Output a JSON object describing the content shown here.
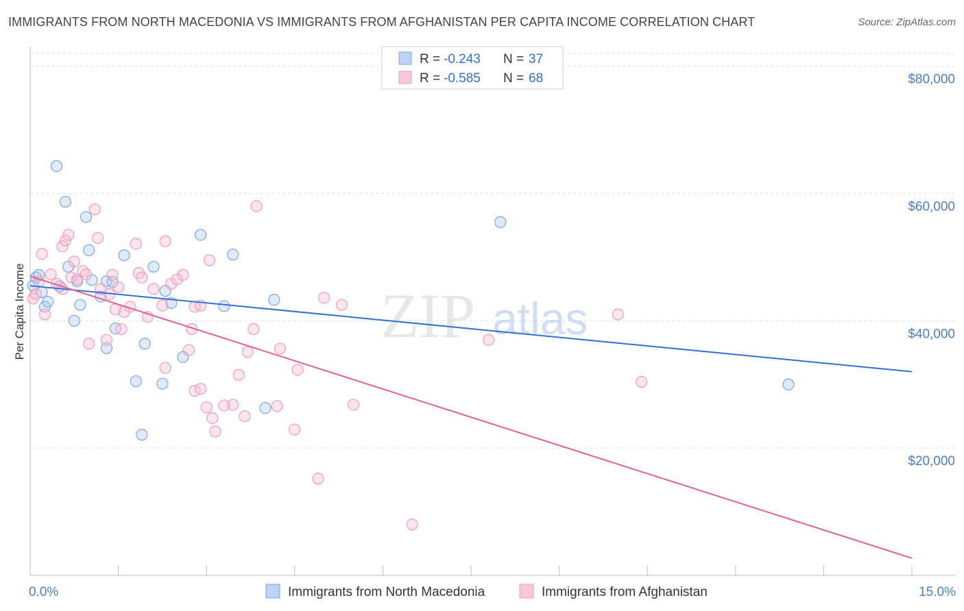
{
  "title": "IMMIGRANTS FROM NORTH MACEDONIA VS IMMIGRANTS FROM AFGHANISTAN PER CAPITA INCOME CORRELATION CHART",
  "source": "Source: ZipAtlas.com",
  "watermark": {
    "zip": "ZIP",
    "atlas": "atlas"
  },
  "colors": {
    "blue": "#7aa6e8",
    "blue_line": "#2f6fd6",
    "pink": "#f19bb6",
    "pink_line": "#e0608f",
    "axis_text": "#4a7cc9"
  },
  "chart_data": {
    "type": "scatter",
    "xlabel": "",
    "ylabel": "Per Capita Income",
    "xlim": [
      0,
      15
    ],
    "ylim": [
      0,
      82000
    ],
    "x_tick_labels": {
      "min": "0.0%",
      "max": "15.0%"
    },
    "y_ticks": [
      {
        "value": 20000,
        "label": "$20,000"
      },
      {
        "value": 40000,
        "label": "$40,000"
      },
      {
        "value": 60000,
        "label": "$60,000"
      },
      {
        "value": 80000,
        "label": "$80,000"
      }
    ],
    "grid": true,
    "legend_position": "top-center",
    "stats": [
      {
        "r_label": "R = ",
        "r": "-0.243",
        "n_label": "N = ",
        "n": "37"
      },
      {
        "r_label": "R = ",
        "r": "-0.585",
        "n_label": "N = ",
        "n": "68"
      }
    ],
    "series": [
      {
        "name": "Immigrants from North Macedonia",
        "color": "blue",
        "trend": [
          [
            0,
            45500
          ],
          [
            15,
            32000
          ]
        ],
        "points": [
          [
            0.05,
            45500
          ],
          [
            0.1,
            46800
          ],
          [
            0.15,
            47200
          ],
          [
            0.2,
            44500
          ],
          [
            0.25,
            42200
          ],
          [
            0.3,
            43000
          ],
          [
            0.45,
            64300
          ],
          [
            0.5,
            45400
          ],
          [
            0.6,
            58700
          ],
          [
            0.65,
            48500
          ],
          [
            0.75,
            40000
          ],
          [
            0.8,
            46200
          ],
          [
            0.85,
            42500
          ],
          [
            0.95,
            56300
          ],
          [
            1.0,
            51100
          ],
          [
            1.05,
            46400
          ],
          [
            1.2,
            43800
          ],
          [
            1.3,
            46200
          ],
          [
            1.3,
            35700
          ],
          [
            1.4,
            46100
          ],
          [
            1.45,
            38800
          ],
          [
            1.6,
            50300
          ],
          [
            1.8,
            30500
          ],
          [
            1.9,
            22100
          ],
          [
            1.95,
            36400
          ],
          [
            2.1,
            48500
          ],
          [
            2.25,
            30100
          ],
          [
            2.3,
            44700
          ],
          [
            2.4,
            42800
          ],
          [
            2.6,
            34300
          ],
          [
            2.9,
            53500
          ],
          [
            3.3,
            42300
          ],
          [
            3.45,
            50400
          ],
          [
            4.0,
            26300
          ],
          [
            4.15,
            43300
          ],
          [
            8.0,
            55500
          ],
          [
            12.9,
            30000
          ]
        ]
      },
      {
        "name": "Immigrants from Afghanistan",
        "color": "pink",
        "trend": [
          [
            0,
            47000
          ],
          [
            15,
            2700
          ]
        ],
        "points": [
          [
            0.05,
            43500
          ],
          [
            0.1,
            44200
          ],
          [
            0.15,
            46200
          ],
          [
            0.2,
            50500
          ],
          [
            0.25,
            41000
          ],
          [
            0.35,
            47300
          ],
          [
            0.45,
            45800
          ],
          [
            0.55,
            45000
          ],
          [
            0.55,
            51700
          ],
          [
            0.6,
            52600
          ],
          [
            0.65,
            53500
          ],
          [
            0.7,
            46800
          ],
          [
            0.75,
            49300
          ],
          [
            0.8,
            46500
          ],
          [
            0.9,
            47800
          ],
          [
            0.95,
            47300
          ],
          [
            1.0,
            36400
          ],
          [
            1.1,
            57500
          ],
          [
            1.15,
            53000
          ],
          [
            1.2,
            45000
          ],
          [
            1.3,
            37000
          ],
          [
            1.35,
            44200
          ],
          [
            1.4,
            47200
          ],
          [
            1.45,
            41800
          ],
          [
            1.5,
            45300
          ],
          [
            1.55,
            38700
          ],
          [
            1.6,
            41400
          ],
          [
            1.7,
            42200
          ],
          [
            1.8,
            52100
          ],
          [
            1.85,
            47500
          ],
          [
            1.9,
            46800
          ],
          [
            2.0,
            40600
          ],
          [
            2.1,
            45000
          ],
          [
            2.25,
            42400
          ],
          [
            2.3,
            32600
          ],
          [
            2.3,
            52500
          ],
          [
            2.4,
            45800
          ],
          [
            2.5,
            46500
          ],
          [
            2.6,
            47200
          ],
          [
            2.7,
            35400
          ],
          [
            2.75,
            38700
          ],
          [
            2.8,
            42200
          ],
          [
            2.8,
            29000
          ],
          [
            2.9,
            29300
          ],
          [
            2.9,
            42400
          ],
          [
            3.0,
            26400
          ],
          [
            3.05,
            49500
          ],
          [
            3.1,
            24700
          ],
          [
            3.15,
            22600
          ],
          [
            3.3,
            26700
          ],
          [
            3.45,
            26800
          ],
          [
            3.55,
            31500
          ],
          [
            3.65,
            25000
          ],
          [
            3.7,
            35100
          ],
          [
            3.8,
            38700
          ],
          [
            3.85,
            58000
          ],
          [
            4.2,
            26600
          ],
          [
            4.25,
            35600
          ],
          [
            4.5,
            22900
          ],
          [
            4.55,
            32300
          ],
          [
            4.9,
            15200
          ],
          [
            5.0,
            43600
          ],
          [
            5.3,
            42500
          ],
          [
            5.5,
            26800
          ],
          [
            6.5,
            8000
          ],
          [
            7.8,
            37000
          ],
          [
            10.4,
            30400
          ],
          [
            10.0,
            41000
          ]
        ]
      }
    ]
  }
}
